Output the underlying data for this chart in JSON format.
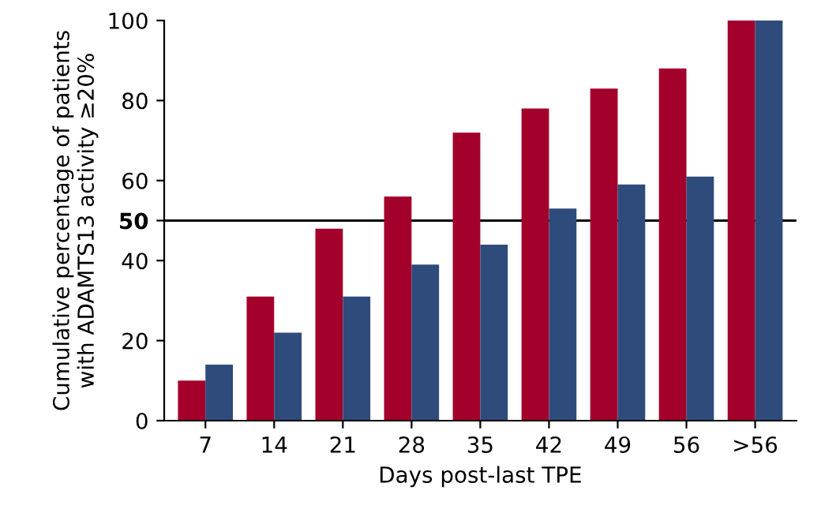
{
  "chart_data": {
    "type": "bar",
    "xlabel": "Days post-last TPE",
    "ylabel": "Cumulative percentage of patients\nwith ADAMTS13 activity ≥20%",
    "categories": [
      "7",
      "14",
      "21",
      "28",
      "35",
      "42",
      "49",
      "56",
      ">56"
    ],
    "series": [
      {
        "color": "#a3002b",
        "values": [
          10,
          31,
          48,
          56,
          72,
          78,
          83,
          88,
          100
        ]
      },
      {
        "color": "#2e4b7c",
        "values": [
          14,
          22,
          31,
          39,
          44,
          53,
          59,
          61,
          100
        ]
      }
    ],
    "ylim": [
      0,
      100
    ],
    "yticks": [
      0,
      20,
      40,
      50,
      60,
      80,
      100
    ],
    "ref_lines": [
      {
        "axis": "y",
        "value": 50,
        "color": "#000000"
      }
    ],
    "grid": false,
    "legend": false
  }
}
